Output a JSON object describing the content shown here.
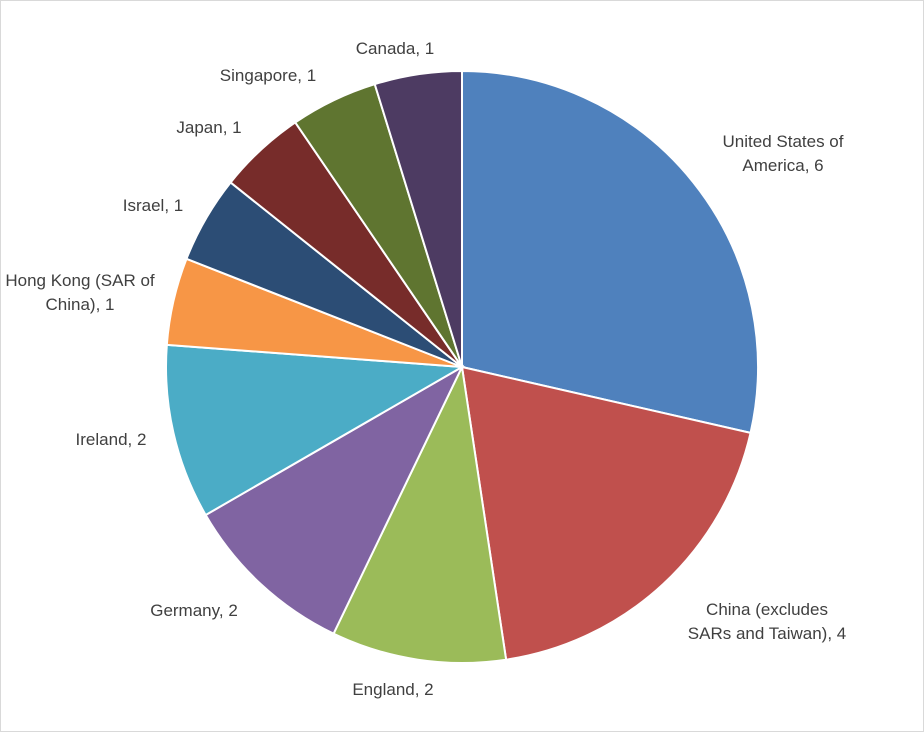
{
  "chart_data": {
    "type": "pie",
    "title": "",
    "start_angle_deg": 0,
    "direction": "clockwise",
    "slices": [
      {
        "label_lines": [
          "United States of",
          "America, 6"
        ],
        "category": "United States of America",
        "value": 6,
        "color": "#4F81BD"
      },
      {
        "label_lines": [
          "China (excludes",
          "SARs and Taiwan), 4"
        ],
        "category": "China (excludes SARs and Taiwan)",
        "value": 4,
        "color": "#C0504D"
      },
      {
        "label_lines": [
          "England, 2"
        ],
        "category": "England",
        "value": 2,
        "color": "#9BBB59"
      },
      {
        "label_lines": [
          "Germany, 2"
        ],
        "category": "Germany",
        "value": 2,
        "color": "#8064A2"
      },
      {
        "label_lines": [
          "Ireland, 2"
        ],
        "category": "Ireland",
        "value": 2,
        "color": "#4BACC6"
      },
      {
        "label_lines": [
          "Hong Kong (SAR of",
          "China), 1"
        ],
        "category": "Hong Kong (SAR of China)",
        "value": 1,
        "color": "#F79646"
      },
      {
        "label_lines": [
          "Israel, 1"
        ],
        "category": "Israel",
        "value": 1,
        "color": "#2C4D75"
      },
      {
        "label_lines": [
          "Japan, 1"
        ],
        "category": "Japan",
        "value": 1,
        "color": "#772C2A"
      },
      {
        "label_lines": [
          "Singapore, 1"
        ],
        "category": "Singapore",
        "value": 1,
        "color": "#5F7530"
      },
      {
        "label_lines": [
          "Canada, 1"
        ],
        "category": "Canada",
        "value": 1,
        "color": "#4D3B62"
      }
    ]
  }
}
